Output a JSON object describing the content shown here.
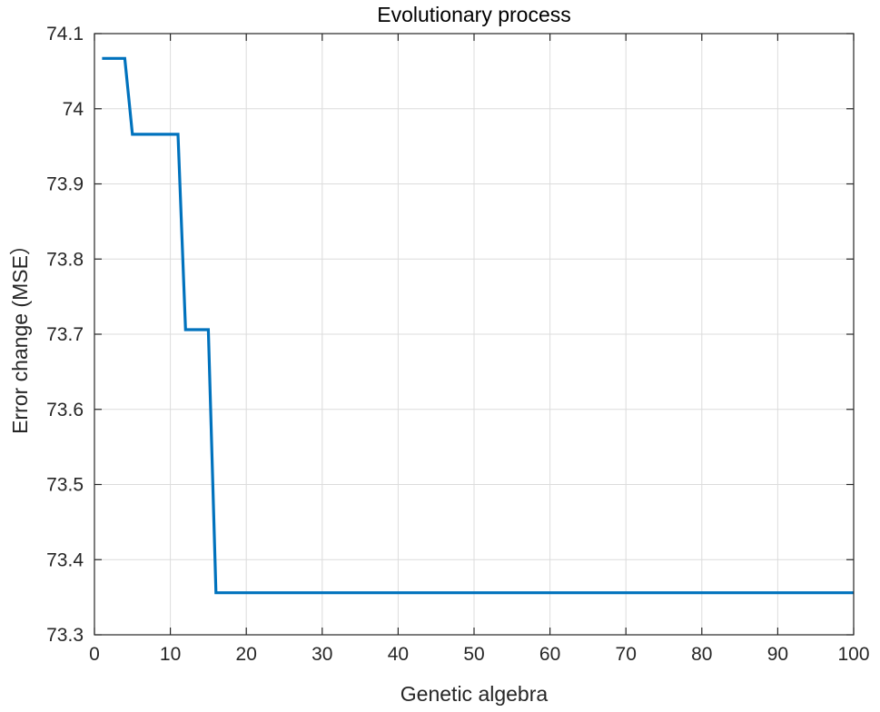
{
  "chart_data": {
    "type": "line",
    "title": "Evolutionary process",
    "xlabel": "Genetic algebra",
    "ylabel": "Error change (MSE）",
    "xlim": [
      0,
      100
    ],
    "ylim": [
      73.3,
      74.1
    ],
    "xticks": [
      0,
      10,
      20,
      30,
      40,
      50,
      60,
      70,
      80,
      90,
      100
    ],
    "yticks": [
      73.3,
      73.4,
      73.5,
      73.6,
      73.7,
      73.8,
      73.9,
      74,
      74.1
    ],
    "xtick_labels": [
      "0",
      "10",
      "20",
      "30",
      "40",
      "50",
      "60",
      "70",
      "80",
      "90",
      "100"
    ],
    "ytick_labels": [
      "73.3",
      "73.4",
      "73.5",
      "73.6",
      "73.7",
      "73.8",
      "73.9",
      "74",
      "74.1"
    ],
    "grid": true,
    "series": [
      {
        "color": "#0072BD",
        "x": [
          1,
          4,
          5,
          11,
          12,
          15,
          16,
          100
        ],
        "y": [
          74.067,
          74.067,
          73.966,
          73.966,
          73.706,
          73.706,
          73.356,
          73.356
        ]
      }
    ]
  }
}
